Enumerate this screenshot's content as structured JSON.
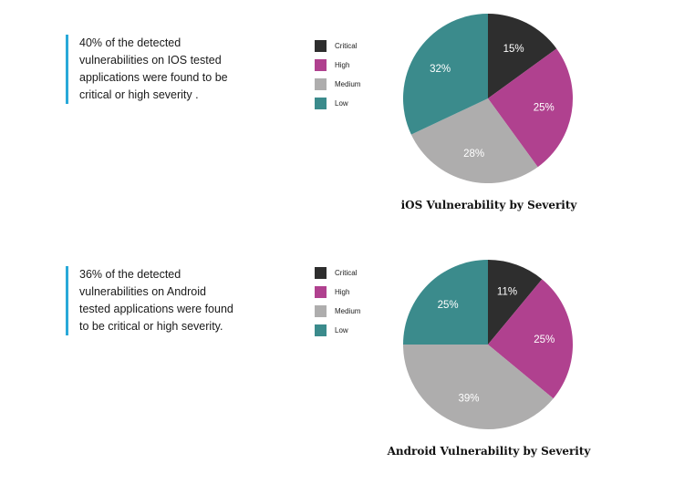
{
  "colors": {
    "Critical": "#2e2e2e",
    "High": "#b0418f",
    "Medium": "#aeadad",
    "Low": "#3b8b8c",
    "accent_bar": "#29a9d9"
  },
  "panels": {
    "ios": {
      "callout": "40% of the detected\nvulnerabilities on IOS tested\napplications were found to be\ncritical or high severity .",
      "legend": [
        "Critical",
        "High",
        "Medium",
        "Low"
      ]
    },
    "android": {
      "callout": " 36% of the detected\nvulnerabilities on Android\ntested applications were found\nto be critical or high severity.",
      "legend": [
        "Critical",
        "High",
        "Medium",
        "Low"
      ]
    }
  },
  "chart_data": [
    {
      "type": "pie",
      "title": "iOS Vulnerability by Severity",
      "categories": [
        "Critical",
        "High",
        "Medium",
        "Low"
      ],
      "values": [
        15,
        25,
        28,
        32
      ],
      "labels": [
        "15%",
        "25%",
        "28%",
        "32%"
      ],
      "legend_position": "left"
    },
    {
      "type": "pie",
      "title": "Android Vulnerability by Severity",
      "categories": [
        "Critical",
        "High",
        "Medium",
        "Low"
      ],
      "values": [
        11,
        25,
        39,
        25
      ],
      "labels": [
        "11%",
        "25%",
        "39%",
        "25%"
      ],
      "legend_position": "left"
    }
  ]
}
